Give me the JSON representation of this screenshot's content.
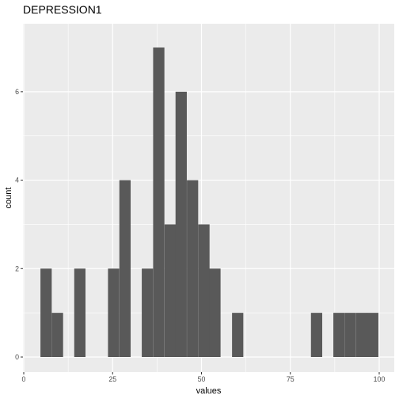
{
  "chart_data": {
    "type": "bar",
    "title": "DEPRESSION1",
    "xlabel": "values",
    "ylabel": "count",
    "xlim": [
      0,
      100
    ],
    "ylim": [
      0,
      7
    ],
    "x_ticks": [
      0,
      25,
      50,
      75,
      100
    ],
    "y_ticks": [
      0,
      2,
      4,
      6
    ],
    "grid": true,
    "bin_width": 3.17,
    "bins": [
      {
        "start": 4.7,
        "count": 2
      },
      {
        "start": 7.9,
        "count": 1
      },
      {
        "start": 14.2,
        "count": 2
      },
      {
        "start": 23.7,
        "count": 2
      },
      {
        "start": 26.9,
        "count": 4
      },
      {
        "start": 33.2,
        "count": 2
      },
      {
        "start": 36.4,
        "count": 7
      },
      {
        "start": 39.6,
        "count": 3
      },
      {
        "start": 42.7,
        "count": 6
      },
      {
        "start": 45.9,
        "count": 4
      },
      {
        "start": 49.1,
        "count": 3
      },
      {
        "start": 52.2,
        "count": 2
      },
      {
        "start": 58.6,
        "count": 1
      },
      {
        "start": 80.8,
        "count": 1
      },
      {
        "start": 87.1,
        "count": 1
      },
      {
        "start": 90.3,
        "count": 1
      },
      {
        "start": 93.5,
        "count": 1
      },
      {
        "start": 96.6,
        "count": 1
      }
    ],
    "colors": {
      "bar": "#595959",
      "panel": "#ebebeb",
      "grid_major": "#ffffff",
      "tick_text": "#4d4d4d"
    }
  }
}
